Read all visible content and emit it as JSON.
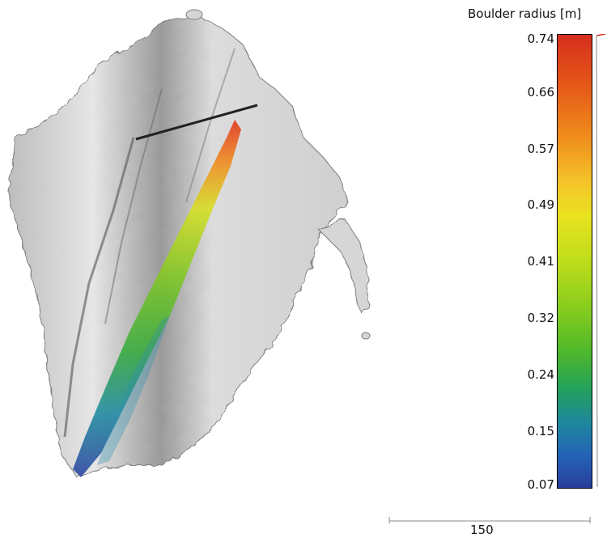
{
  "colorbar": {
    "title": "Boulder radius [m]",
    "ticks": [
      "0.74",
      "0.66",
      "0.57",
      "0.49",
      "0.41",
      "0.32",
      "0.24",
      "0.15",
      "0.07"
    ],
    "colors": [
      "#d62f1e",
      "#ef8a1c",
      "#e9e21f",
      "#4fb82a",
      "#1f86a0",
      "#2a3e9c"
    ]
  },
  "scalebar": {
    "label": "150"
  },
  "scene": {
    "terrain_color": "#d9d9d9",
    "terrain_shadow": "#6e6e6e",
    "line_color": "#222222"
  }
}
